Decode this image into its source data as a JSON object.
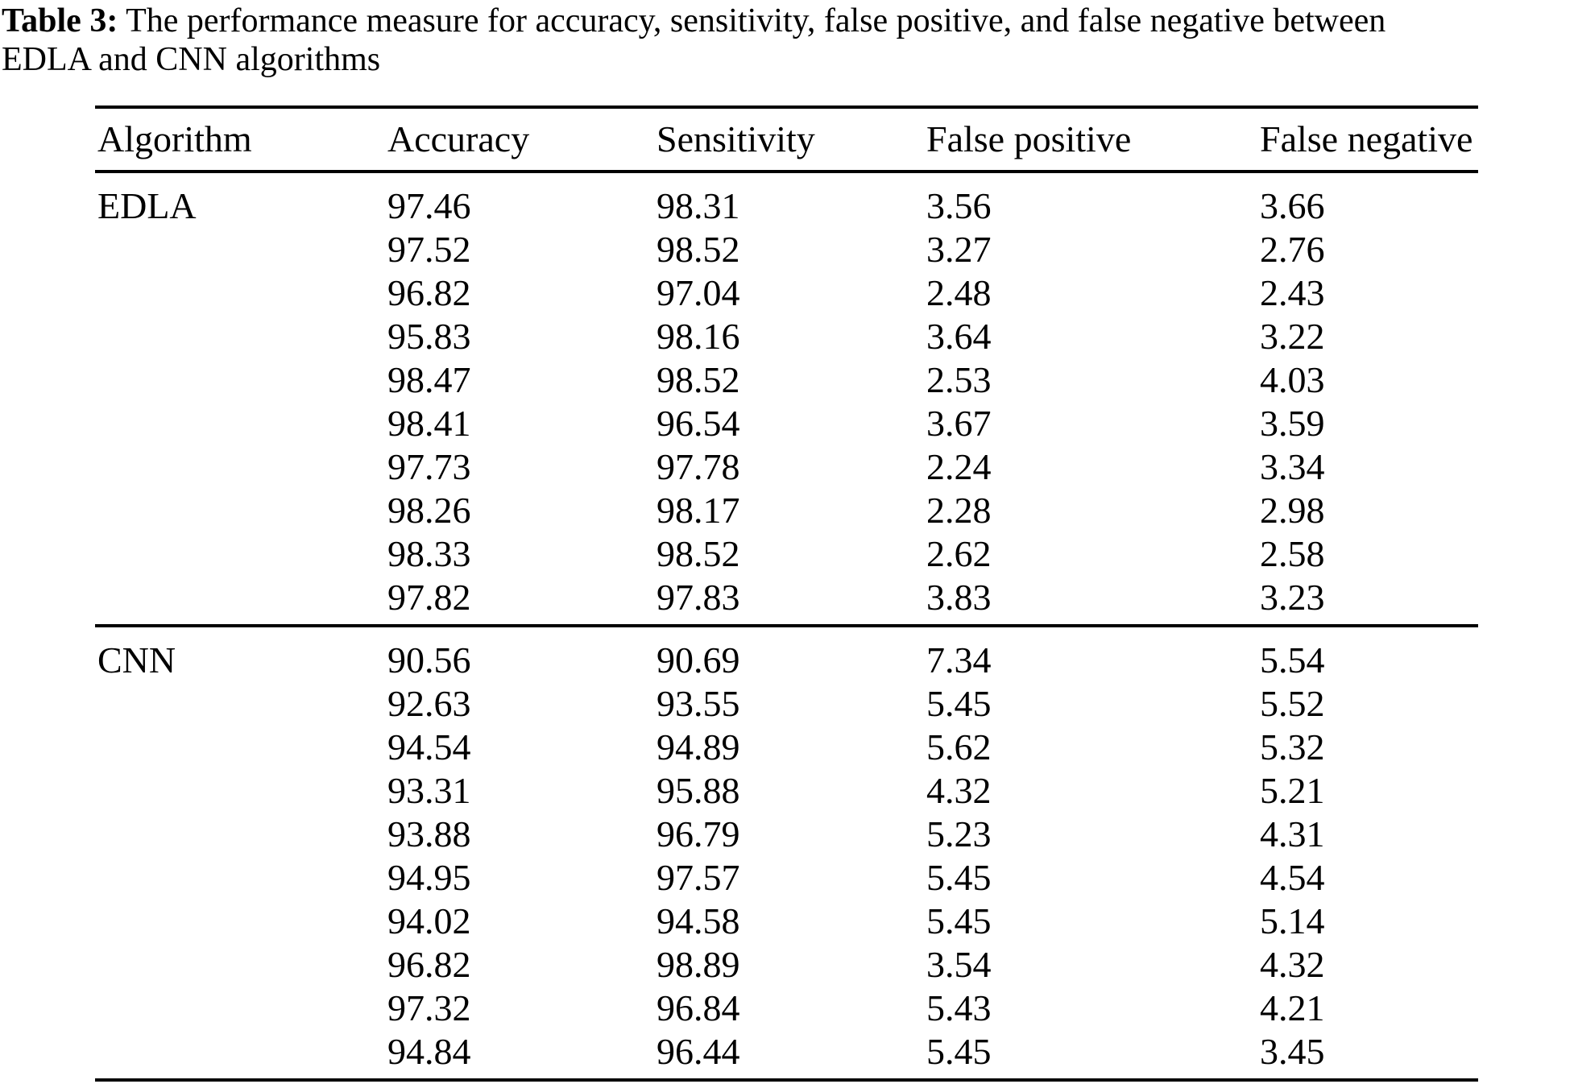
{
  "caption": {
    "label": "Table 3:",
    "line1_rest": "The performance measure for accuracy, sensitivity, false positive, and false negative between",
    "line2": "EDLA and CNN algorithms"
  },
  "table": {
    "columns": [
      "Algorithm",
      "Accuracy",
      "Sensitivity",
      "False positive",
      "False negative"
    ],
    "groups": [
      {
        "algorithm": "EDLA",
        "rows": [
          [
            "97.46",
            "98.31",
            "3.56",
            "3.66"
          ],
          [
            "97.52",
            "98.52",
            "3.27",
            "2.76"
          ],
          [
            "96.82",
            "97.04",
            "2.48",
            "2.43"
          ],
          [
            "95.83",
            "98.16",
            "3.64",
            "3.22"
          ],
          [
            "98.47",
            "98.52",
            "2.53",
            "4.03"
          ],
          [
            "98.41",
            "96.54",
            "3.67",
            "3.59"
          ],
          [
            "97.73",
            "97.78",
            "2.24",
            "3.34"
          ],
          [
            "98.26",
            "98.17",
            "2.28",
            "2.98"
          ],
          [
            "98.33",
            "98.52",
            "2.62",
            "2.58"
          ],
          [
            "97.82",
            "97.83",
            "3.83",
            "3.23"
          ]
        ]
      },
      {
        "algorithm": "CNN",
        "rows": [
          [
            "90.56",
            "90.69",
            "7.34",
            "5.54"
          ],
          [
            "92.63",
            "93.55",
            "5.45",
            "5.52"
          ],
          [
            "94.54",
            "94.89",
            "5.62",
            "5.32"
          ],
          [
            "93.31",
            "95.88",
            "4.32",
            "5.21"
          ],
          [
            "93.88",
            "96.79",
            "5.23",
            "4.31"
          ],
          [
            "94.95",
            "97.57",
            "5.45",
            "4.54"
          ],
          [
            "94.02",
            "94.58",
            "5.45",
            "5.14"
          ],
          [
            "96.82",
            "98.89",
            "3.54",
            "4.32"
          ],
          [
            "97.32",
            "96.84",
            "5.43",
            "4.21"
          ],
          [
            "94.84",
            "96.44",
            "5.45",
            "3.45"
          ]
        ]
      }
    ]
  },
  "colors": {
    "background": "#ffffff",
    "text": "#000000",
    "rule": "#000000"
  }
}
